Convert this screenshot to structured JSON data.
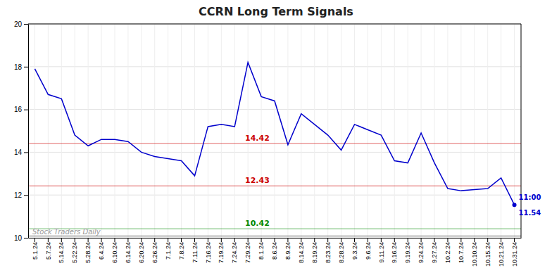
{
  "chart_data": {
    "type": "line",
    "title": "CCRN Long Term Signals",
    "categories": [
      "5.1.24",
      "5.7.24",
      "5.14.24",
      "5.22.24",
      "5.28.24",
      "6.4.24",
      "6.10.24",
      "6.14.24",
      "6.20.24",
      "6.26.24",
      "7.1.24",
      "7.8.24",
      "7.11.24",
      "7.16.24",
      "7.19.24",
      "7.24.24",
      "7.29.24",
      "8.1.24",
      "8.6.24",
      "8.9.24",
      "8.14.24",
      "8.19.24",
      "8.23.24",
      "8.28.24",
      "9.3.24",
      "9.6.24",
      "9.11.24",
      "9.16.24",
      "9.19.24",
      "9.24.24",
      "9.27.24",
      "10.2.24",
      "10.7.24",
      "10.10.24",
      "10.15.24",
      "10.21.24",
      "10.31.24"
    ],
    "values": [
      17.9,
      16.7,
      16.5,
      14.8,
      14.3,
      14.6,
      14.6,
      14.5,
      14.0,
      13.8,
      13.7,
      13.6,
      12.9,
      15.2,
      15.3,
      15.2,
      18.2,
      16.6,
      16.4,
      14.35,
      15.8,
      15.3,
      14.8,
      14.1,
      15.3,
      15.05,
      14.8,
      13.6,
      13.5,
      14.9,
      13.5,
      12.3,
      12.2,
      12.25,
      12.3,
      12.8,
      11.54
    ],
    "color": "#0000cc",
    "hlines": [
      {
        "value": 14.42,
        "label": "14.42",
        "color": "#cc0000"
      },
      {
        "value": 12.43,
        "label": "12.43",
        "color": "#cc0000"
      },
      {
        "value": 10.42,
        "label": "10.42",
        "color": "#008800"
      },
      {
        "value": 10.08,
        "color": "#888888"
      }
    ],
    "annotations": [
      {
        "text": "11:00"
      },
      {
        "text": "11.54"
      }
    ],
    "watermark": "Stock Traders Daily",
    "ylim": [
      10,
      20
    ],
    "yticks": [
      10,
      12,
      14,
      16,
      18,
      20
    ],
    "grid": true
  }
}
